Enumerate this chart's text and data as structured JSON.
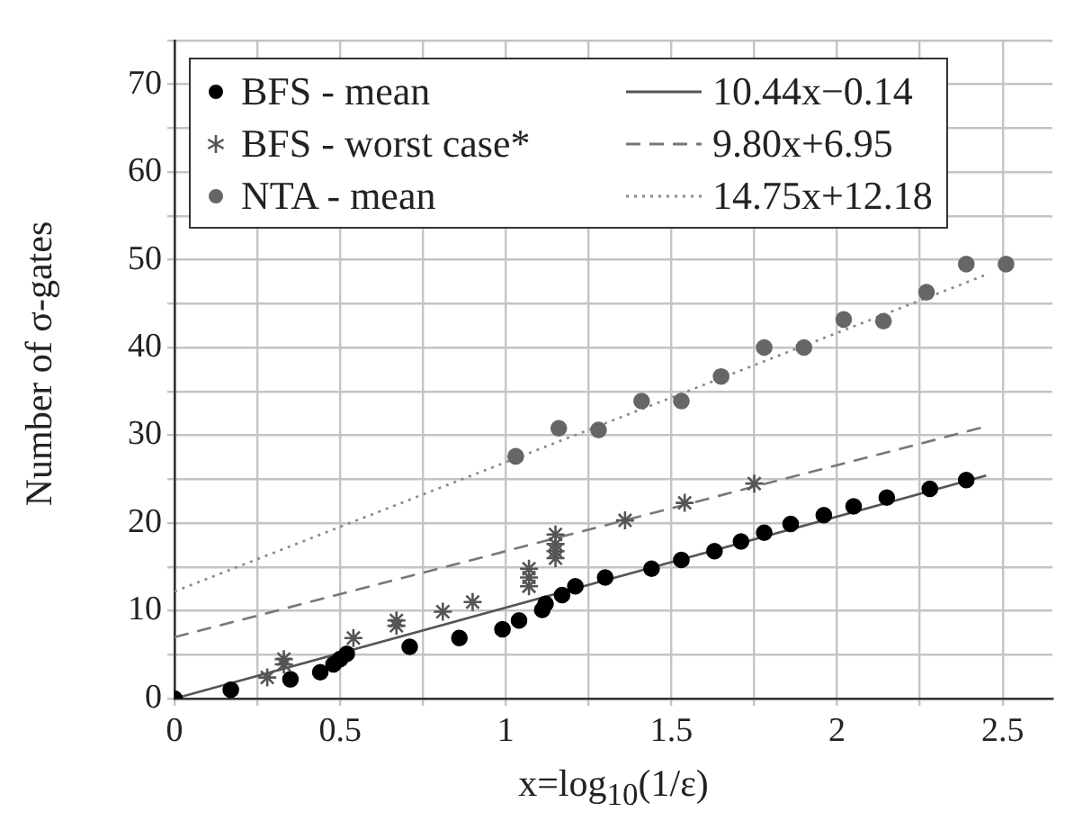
{
  "chart_data": {
    "type": "scatter",
    "xlabel": "x=log$_{10}$(1/ε)",
    "ylabel": "Number of σ-gates",
    "xlim": [
      0,
      2.65
    ],
    "ylim": [
      0,
      75
    ],
    "xticks": [
      0,
      {
        "value": 0.25,
        "label": null
      },
      0.5,
      {
        "value": 0.75,
        "label": null
      },
      1,
      {
        "value": 1.25,
        "label": null
      },
      1.5,
      {
        "value": 1.75,
        "label": null
      },
      2,
      {
        "value": 2.25,
        "label": null
      },
      2.5
    ],
    "yticks": [
      0,
      {
        "value": 5,
        "label": null
      },
      10,
      {
        "value": 15,
        "label": null
      },
      20,
      {
        "value": 25,
        "label": null
      },
      30,
      {
        "value": 35,
        "label": null
      },
      40,
      {
        "value": 45,
        "label": null
      },
      50,
      {
        "value": 55,
        "label": null
      },
      60,
      {
        "value": 65,
        "label": null
      },
      70,
      {
        "value": 75,
        "label": null
      }
    ],
    "grid": true,
    "legend": "top",
    "series": [
      {
        "name": "BFS - mean",
        "type": "scatter",
        "marker": "circle",
        "color": "#000000",
        "x": [
          0,
          0.17,
          0.35,
          0.44,
          0.48,
          0.5,
          0.52,
          0.71,
          0.86,
          0.99,
          1.04,
          1.11,
          1.12,
          1.17,
          1.21,
          1.3,
          1.44,
          1.53,
          1.63,
          1.71,
          1.78,
          1.86,
          1.96,
          2.05,
          2.15,
          2.28,
          2.39
        ],
        "values": [
          0,
          1,
          2.2,
          3,
          3.9,
          4.5,
          5.1,
          5.9,
          6.9,
          7.9,
          8.9,
          10.1,
          10.8,
          11.8,
          12.8,
          13.8,
          14.8,
          15.8,
          16.8,
          17.9,
          18.9,
          19.9,
          20.9,
          21.9,
          22.9,
          23.9,
          24.9
        ]
      },
      {
        "name": "BFS - worst case*",
        "type": "scatter",
        "marker": "cross",
        "color": "#555555",
        "x": [
          0.28,
          0.33,
          0.33,
          0.54,
          0.67,
          0.67,
          0.81,
          0.9,
          1.07,
          1.07,
          1.07,
          1.15,
          1.15,
          1.15,
          1.15,
          1.36,
          1.54,
          1.75
        ],
        "values": [
          2.4,
          3.9,
          4.5,
          6.9,
          8.3,
          8.9,
          9.9,
          11,
          12.8,
          13.8,
          14.8,
          16,
          16.8,
          17.6,
          18.7,
          20.3,
          22.3,
          24.5
        ]
      },
      {
        "name": "NTA - mean",
        "type": "scatter",
        "marker": "circle",
        "color": "#666666",
        "x": [
          1.03,
          1.16,
          1.28,
          1.41,
          1.53,
          1.65,
          1.78,
          1.9,
          2.02,
          2.14,
          2.27,
          2.39,
          2.51
        ],
        "values": [
          27.6,
          30.8,
          30.6,
          33.9,
          33.9,
          36.7,
          40,
          40,
          43.2,
          43,
          46.3,
          49.5,
          49.5
        ]
      },
      {
        "name": "10.44x−0.14",
        "type": "line",
        "line_style": "solid",
        "marker": "none",
        "color": "#555555",
        "x": [
          0,
          2.45
        ],
        "values": [
          0,
          25.4
        ]
      },
      {
        "name": "9.80x+6.95",
        "type": "line",
        "line_style": "dashed",
        "marker": "none",
        "color": "#777777",
        "x": [
          0,
          2.45
        ],
        "values": [
          7,
          31
        ]
      },
      {
        "name": "14.75x+12.18",
        "type": "line",
        "line_style": "dotted",
        "marker": "none",
        "color": "#888888",
        "x": [
          0,
          2.45
        ],
        "values": [
          12.2,
          48.3
        ]
      }
    ]
  }
}
